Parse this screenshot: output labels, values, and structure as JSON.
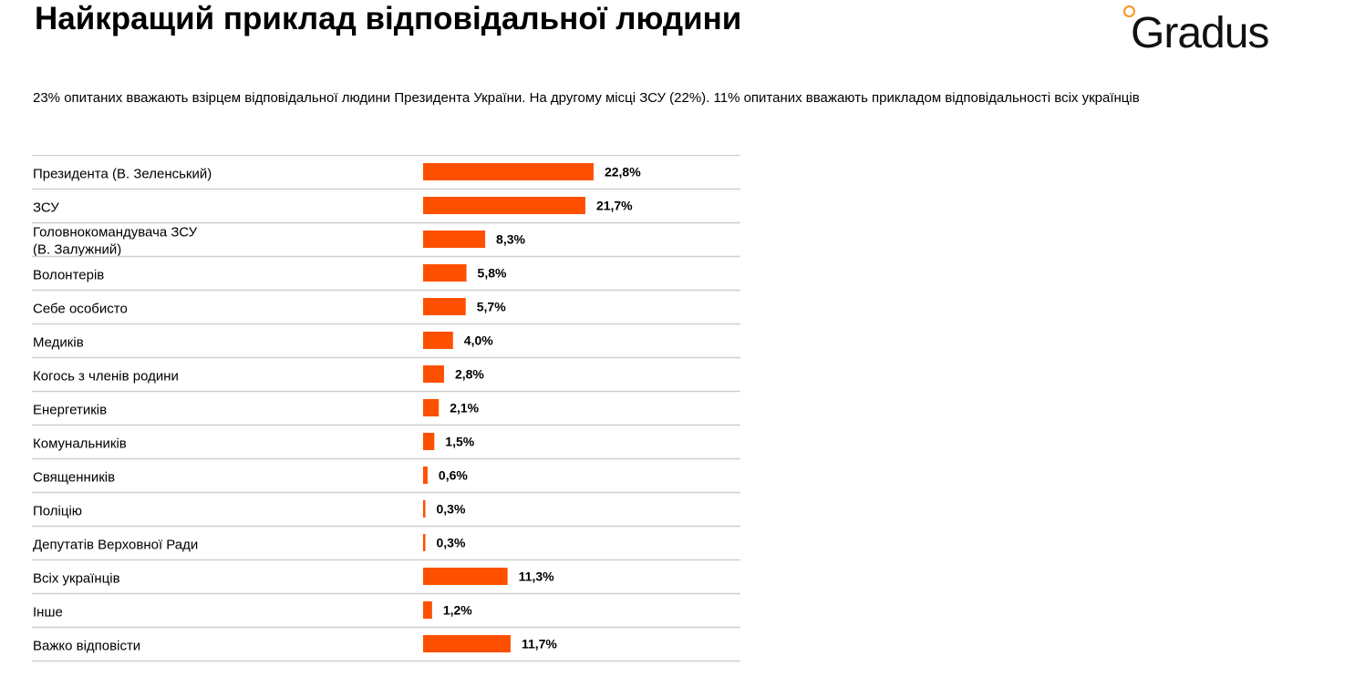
{
  "header": {
    "title": "Найкращий приклад відповідальної людини",
    "subtitle": "23% опитаних вважають взірцем відповідальної людини Президента України. На другому місці ЗСУ (22%). 11% опитаних вважають прикладом відповідальності всіх українців"
  },
  "logo": {
    "text": "Gradus",
    "accent_color": "#f7941d"
  },
  "colors": {
    "bar": "#ff5000",
    "divider": "#d0d0d0",
    "text": "#000000"
  },
  "chart_data": {
    "type": "bar",
    "orientation": "horizontal",
    "value_format": "percent, comma decimal separator, 1 decimal",
    "grid": false,
    "legend": "none",
    "categories": [
      [
        "Президента (В. Зеленський)"
      ],
      [
        "ЗСУ"
      ],
      [
        "Головнокомандувача ЗСУ",
        "(В. Залужний)"
      ],
      [
        "Волонтерів"
      ],
      [
        "Себе особисто"
      ],
      [
        "Медиків"
      ],
      [
        "Когось з членів родини"
      ],
      [
        "Енергетиків"
      ],
      [
        "Комунальників"
      ],
      [
        "Священників"
      ],
      [
        "Поліцію"
      ],
      [
        "Депутатів Верховної Ради"
      ],
      [
        "Всіх українців"
      ],
      [
        "Інше"
      ],
      [
        "Важко відповісти"
      ]
    ],
    "values": [
      22.8,
      21.7,
      8.3,
      5.8,
      5.7,
      4.0,
      2.8,
      2.1,
      1.5,
      0.6,
      0.3,
      0.3,
      11.3,
      1.2,
      11.7
    ],
    "value_labels": [
      "22,8%",
      "21,7%",
      "8,3%",
      "5,8%",
      "5,7%",
      "4,0%",
      "2,8%",
      "2,1%",
      "1,5%",
      "0,6%",
      "0,3%",
      "0,3%",
      "11,3%",
      "1,2%",
      "11,7%"
    ]
  }
}
